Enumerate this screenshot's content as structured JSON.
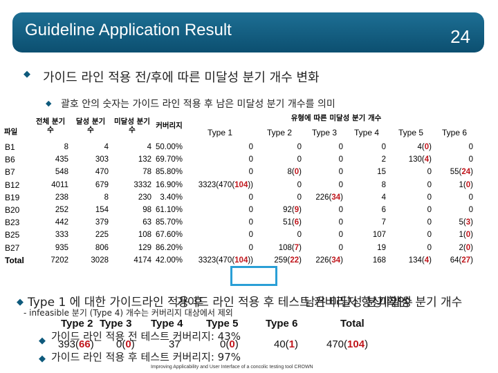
{
  "slide": {
    "title": "Guideline Application Result",
    "page_number": "24"
  },
  "bullets": {
    "main": "가이드 라인 적용 전/후에 따른 미달성 분기 개수 변화",
    "sub": "괄호 안의 숫자는 가이드 라인 적용 후 남은 미달성 분기 개수를 의미"
  },
  "table": {
    "group_header": "유형에 따른 미달성 분기 개수",
    "columns": [
      "파일",
      "전체 분기 수",
      "달성 분기 수",
      "미달성 분기 수",
      "커버리지",
      "Type 1",
      "Type 2",
      "Type 3",
      "Type 4",
      "Type 5",
      "Type 6"
    ],
    "rows": [
      {
        "file": "B1",
        "total": "8",
        "achieved": "4",
        "unachieved": "4",
        "coverage": "50.00%",
        "t1": "0",
        "t1r": "",
        "t2": "0",
        "t2r": "",
        "t3": "0",
        "t3r": "",
        "t4": "0",
        "t5": "4(",
        "t5r": "0",
        "t6": "0",
        "t6r": ""
      },
      {
        "file": "B6",
        "total": "435",
        "achieved": "303",
        "unachieved": "132",
        "coverage": "69.70%",
        "t1": "0",
        "t1r": "",
        "t2": "0",
        "t2r": "",
        "t3": "0",
        "t3r": "",
        "t4": "2",
        "t5": "130(",
        "t5r": "4",
        "t6": "0",
        "t6r": ""
      },
      {
        "file": "B7",
        "total": "548",
        "achieved": "470",
        "unachieved": "78",
        "coverage": "85.80%",
        "t1": "0",
        "t1r": "",
        "t2": "8(",
        "t2r": "0",
        "t3": "0",
        "t3r": "",
        "t4": "15",
        "t5": "0",
        "t5r": "",
        "t6": "55(",
        "t6r": "24"
      },
      {
        "file": "B12",
        "total": "4011",
        "achieved": "679",
        "unachieved": "3332",
        "coverage": "16.90%",
        "t1": "3323(470(",
        "t1r": "104",
        "t2": "0",
        "t2r": "",
        "t3": "0",
        "t3r": "",
        "t4": "8",
        "t5": "0",
        "t5r": "",
        "t6": "1(",
        "t6r": "0"
      },
      {
        "file": "B19",
        "total": "238",
        "achieved": "8",
        "unachieved": "230",
        "coverage": "3.40%",
        "t1": "0",
        "t1r": "",
        "t2": "0",
        "t2r": "",
        "t3": "226(",
        "t3r": "34",
        "t4": "4",
        "t5": "0",
        "t5r": "",
        "t6": "0",
        "t6r": ""
      },
      {
        "file": "B20",
        "total": "252",
        "achieved": "154",
        "unachieved": "98",
        "coverage": "61.10%",
        "t1": "0",
        "t1r": "",
        "t2": "92(",
        "t2r": "9",
        "t3": "0",
        "t3r": "",
        "t4": "6",
        "t5": "0",
        "t5r": "",
        "t6": "0",
        "t6r": ""
      },
      {
        "file": "B23",
        "total": "442",
        "achieved": "379",
        "unachieved": "63",
        "coverage": "85.70%",
        "t1": "0",
        "t1r": "",
        "t2": "51(",
        "t2r": "6",
        "t3": "0",
        "t3r": "",
        "t4": "7",
        "t5": "0",
        "t5r": "",
        "t6": "5(",
        "t6r": "3"
      },
      {
        "file": "B25",
        "total": "333",
        "achieved": "225",
        "unachieved": "108",
        "coverage": "67.60%",
        "t1": "0",
        "t1r": "",
        "t2": "0",
        "t2r": "",
        "t3": "0",
        "t3r": "",
        "t4": "107",
        "t5": "0",
        "t5r": "",
        "t6": "1(",
        "t6r": "0"
      },
      {
        "file": "B27",
        "total": "935",
        "achieved": "806",
        "unachieved": "129",
        "coverage": "86.20%",
        "t1": "0",
        "t1r": "",
        "t2": "108(",
        "t2r": "7",
        "t3": "0",
        "t3r": "",
        "t4": "19",
        "t5": "0",
        "t5r": "",
        "t6": "2(",
        "t6r": "0"
      },
      {
        "file": "Total",
        "total": "7202",
        "achieved": "3028",
        "unachieved": "4174",
        "coverage": "42.00%",
        "t1": "3323(470(",
        "t1r": "104",
        "t2": "259(",
        "t2r": "22",
        "t3": "226(",
        "t3r": "34",
        "t4": "168",
        "t5": "134(",
        "t5r": "4",
        "t6": "64(",
        "t6r": "27"
      }
    ]
  },
  "overlay": {
    "line1a": "Type 1 에 대한 가이드라인 적용 후",
    "line1b": "가이드 라인 적용 후 테스트 커버리지 향상 확인",
    "line1c": "남은 미달성 분기 개수",
    "line1d": "미달성 분기 개수",
    "line2": "- infeasible 분기 (Type 4) 개수는 커버리지 대상에서 제외",
    "summary_headers": [
      "Type 2",
      "Type 3",
      "Type 4",
      "Type 5",
      "Type 6",
      "Total"
    ],
    "summary_values": [
      {
        "pre": "393(",
        "red": "66",
        "post": ")"
      },
      {
        "pre": "0(",
        "red": "0",
        "post": ")"
      },
      {
        "pre": "37",
        "red": "",
        "post": ""
      },
      {
        "pre": "0(",
        "red": "0",
        "post": ")"
      },
      {
        "pre": "40(",
        "red": "1",
        "post": ")"
      },
      {
        "pre": "470(",
        "red": "104",
        "post": ")"
      }
    ],
    "before": "가이드 라인 적용 전 테스트 커버리지: 43%",
    "after": "가이드 라인 적용 후 테스트 커버리지: 97%"
  },
  "footer": "Improving Applicability and User Interface of a concolic testing tool CROWN",
  "colors": {
    "header_bg": "#0c4f70",
    "highlight": "#2a9fd6",
    "red_value": "#c0161c"
  }
}
